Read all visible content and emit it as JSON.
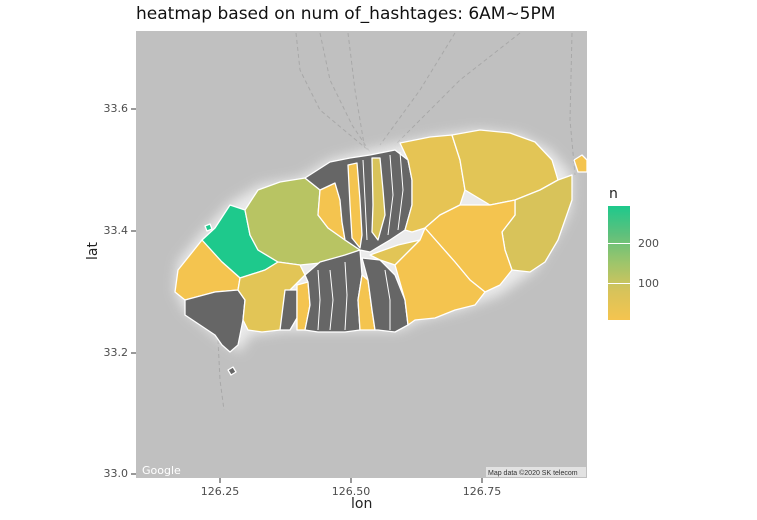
{
  "title": "heatmap based on num of_hashtages: 6AM~5PM",
  "axes": {
    "x_title": "lon",
    "y_title": "lat",
    "x_ticks": [
      "126.25",
      "126.50",
      "126.75"
    ],
    "y_ticks": [
      "33.6",
      "33.4",
      "33.2",
      "33.0"
    ]
  },
  "legend": {
    "title": "n",
    "labels": [
      "200",
      "100"
    ],
    "low_color": "#f4c44f",
    "high_color": "#1ec98c"
  },
  "basemap": {
    "provider_logo": "Google",
    "attribution": "Map data ©2020 SK telecom",
    "no_data_color": "#666666",
    "background_color": "#c0c0c0"
  },
  "chart_data": {
    "type": "heatmap",
    "title": "heatmap based on num of_hashtages: 6AM~5PM",
    "xlabel": "lon",
    "ylabel": "lat",
    "xlim": [
      126.08,
      126.97
    ],
    "ylim": [
      33.0,
      33.73
    ],
    "color_scale": {
      "name": "n",
      "min_color": "#f4c44f",
      "max_color": "#1ec98c",
      "breaks": [
        100,
        200
      ]
    }
  }
}
